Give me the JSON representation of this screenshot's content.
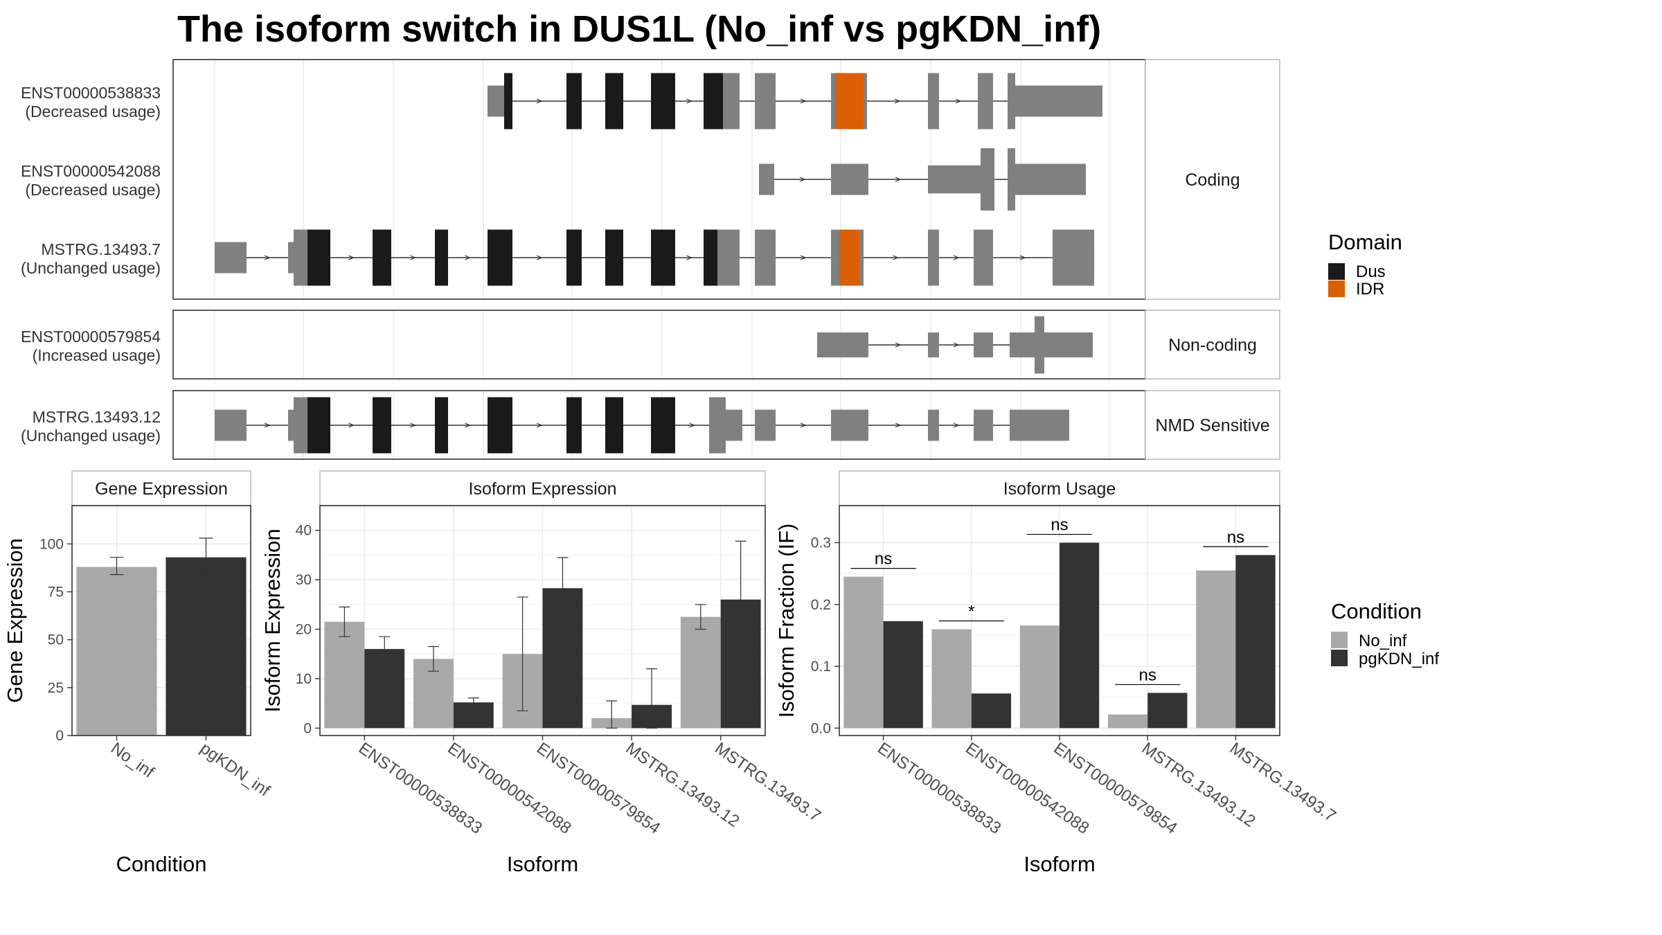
{
  "title": "The isoform switch in DUS1L (No_inf vs pgKDN_inf)",
  "colors": {
    "dus": "#1a1a1a",
    "idr": "#d95f02",
    "exon": "#808080",
    "no_inf": "#a9a9a9",
    "pgkdn": "#333333"
  },
  "transcripts": [
    {
      "id": "ENST00000538833",
      "usage": "(Decreased usage)"
    },
    {
      "id": "ENST00000542088",
      "usage": "(Decreased usage)"
    },
    {
      "id": "MSTRG.13493.7",
      "usage": "(Unchanged usage)"
    },
    {
      "id": "ENST00000579854",
      "usage": "(Increased usage)"
    },
    {
      "id": "MSTRG.13493.12",
      "usage": "(Unchanged usage)"
    }
  ],
  "groups": [
    "Coding",
    "Non-coding",
    "NMD Sensitive"
  ],
  "domain_legend": {
    "title": "Domain",
    "items": [
      "Dus",
      "IDR"
    ]
  },
  "condition_legend": {
    "title": "Condition",
    "items": [
      "No_inf",
      "pgKDN_inf"
    ]
  },
  "chart_data": [
    {
      "type": "bar",
      "title": "Gene Expression",
      "xlabel": "Condition",
      "ylabel": "Gene Expression",
      "categories": [
        "No_inf",
        "pgKDN_inf"
      ],
      "values": [
        88,
        93
      ],
      "error_low": [
        84,
        84
      ],
      "error_high": [
        93,
        103
      ],
      "ylim": [
        0,
        120
      ],
      "yticks": [
        0,
        25,
        50,
        75,
        100
      ],
      "grid": true
    },
    {
      "type": "bar",
      "title": "Isoform Expression",
      "xlabel": "Isoform",
      "ylabel": "Isoform Expression",
      "categories": [
        "ENST00000538833",
        "ENST00000542088",
        "ENST00000579854",
        "MSTRG.13493.12",
        "MSTRG.13493.7"
      ],
      "series": [
        {
          "name": "No_inf",
          "values": [
            21.5,
            14.0,
            15.0,
            2.0,
            22.5
          ],
          "error_low": [
            18.5,
            11.5,
            3.5,
            0,
            20.0
          ],
          "error_high": [
            24.5,
            16.5,
            26.5,
            5.5,
            25.0
          ]
        },
        {
          "name": "pgKDN_inf",
          "values": [
            16.0,
            5.2,
            28.3,
            4.7,
            26.0
          ],
          "error_low": [
            13.5,
            4.3,
            22.0,
            0,
            14.5
          ],
          "error_high": [
            18.5,
            6.1,
            34.5,
            12.0,
            37.8
          ]
        }
      ],
      "ylim": [
        -1.5,
        45
      ],
      "yticks": [
        0,
        10,
        20,
        30,
        40
      ],
      "grid": true
    },
    {
      "type": "bar",
      "title": "Isoform Usage",
      "xlabel": "Isoform",
      "ylabel": "Isoform Fraction (IF)",
      "categories": [
        "ENST00000538833",
        "ENST00000542088",
        "ENST00000579854",
        "MSTRG.13493.12",
        "MSTRG.13493.7"
      ],
      "series": [
        {
          "name": "No_inf",
          "values": [
            0.245,
            0.16,
            0.166,
            0.022,
            0.255
          ]
        },
        {
          "name": "pgKDN_inf",
          "values": [
            0.173,
            0.056,
            0.3,
            0.057,
            0.28
          ]
        }
      ],
      "significance": [
        "ns",
        "*",
        "ns",
        "ns",
        "ns"
      ],
      "ylim": [
        -0.012,
        0.36
      ],
      "yticks": [
        0.0,
        0.1,
        0.2,
        0.3
      ],
      "grid": true
    }
  ]
}
